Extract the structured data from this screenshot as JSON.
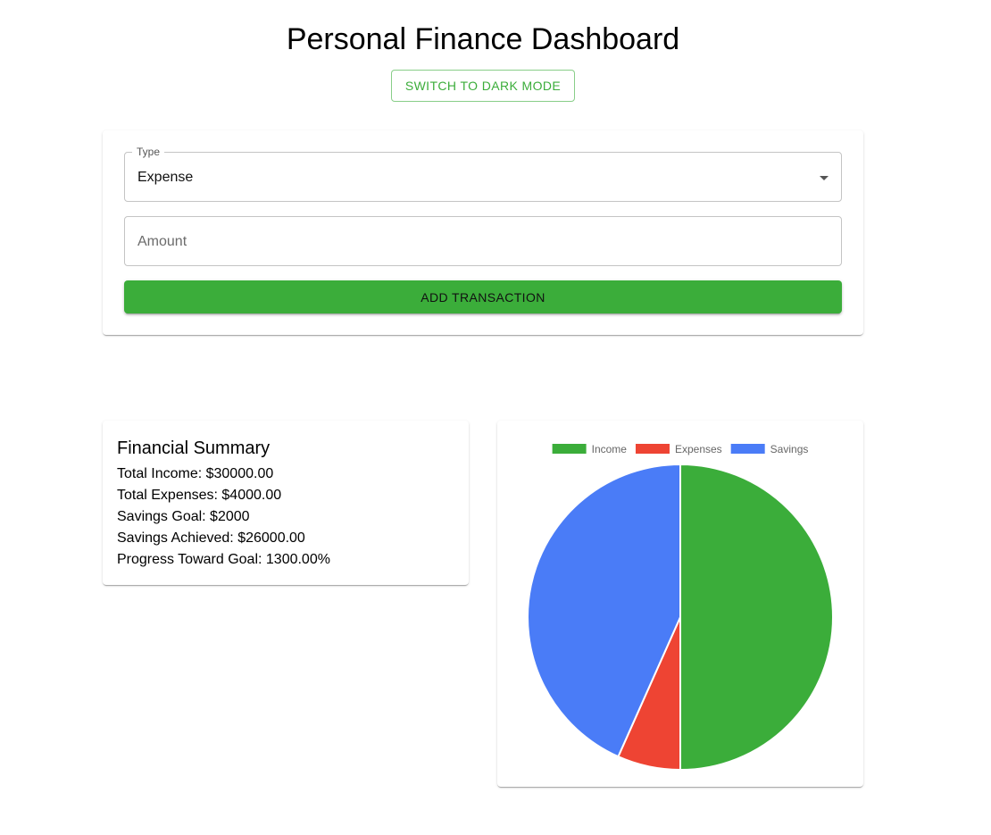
{
  "header": {
    "title": "Personal Finance Dashboard",
    "mode_toggle_label": "SWITCH TO DARK MODE"
  },
  "form": {
    "type_label": "Type",
    "type_value": "Expense",
    "amount_placeholder": "Amount",
    "amount_value": "",
    "submit_label": "ADD TRANSACTION"
  },
  "summary": {
    "title": "Financial Summary",
    "lines": [
      "Total Income: $30000.00",
      "Total Expenses: $4000.00",
      "Savings Goal: $2000",
      "Savings Achieved: $26000.00",
      "Progress Toward Goal: 1300.00%"
    ]
  },
  "colors": {
    "accent": "#3bad3a",
    "income": "#3bad3a",
    "expenses": "#ee4433",
    "savings": "#4a7cf7"
  },
  "chart_data": {
    "type": "pie",
    "categories": [
      "Income",
      "Expenses",
      "Savings"
    ],
    "values": [
      30000,
      4000,
      26000
    ],
    "colors": [
      "#3bad3a",
      "#ee4433",
      "#4a7cf7"
    ],
    "legend": "top"
  }
}
